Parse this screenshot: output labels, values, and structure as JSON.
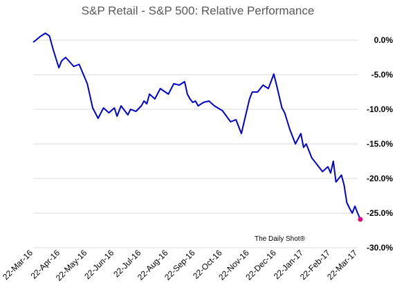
{
  "chart_data": {
    "type": "line",
    "title": "S&P Retail - S&P 500:   Relative Performance",
    "watermark": "The Daily Shot®",
    "y_ticks": [
      {
        "value": 0,
        "label": "0.0%"
      },
      {
        "value": -5,
        "label": "-5.0%"
      },
      {
        "value": -10,
        "label": "-10.0%"
      },
      {
        "value": -15,
        "label": "-15.0%"
      },
      {
        "value": -20,
        "label": "-20.0%"
      },
      {
        "value": -25,
        "label": "-25.0%"
      },
      {
        "value": -30,
        "label": "-30.0%"
      }
    ],
    "x_ticks": [
      "22-Mar-16",
      "22-Apr-16",
      "22-May-16",
      "22-Jun-16",
      "22-Jul-16",
      "22-Aug-16",
      "22-Sep-16",
      "22-Oct-16",
      "22-Nov-16",
      "22-Dec-16",
      "22-Jan-17",
      "22-Feb-17",
      "22-Mar-17"
    ],
    "ylim": [
      -30,
      0
    ],
    "grid": true,
    "series_color": "#0000cc",
    "marker_color": "#e0007f",
    "x": [
      0.0,
      0.1,
      0.25,
      0.45,
      0.6,
      0.75,
      0.95,
      1.05,
      1.2,
      1.5,
      1.7,
      2.0,
      2.2,
      2.4,
      2.6,
      2.8,
      3.0,
      3.1,
      3.25,
      3.5,
      3.6,
      3.8,
      4.0,
      4.1,
      4.2,
      4.3,
      4.5,
      4.7,
      5.0,
      5.2,
      5.4,
      5.6,
      5.7,
      5.8,
      5.9,
      6.0,
      6.1,
      6.3,
      6.5,
      6.7,
      7.0,
      7.3,
      7.5,
      7.7,
      8.0,
      8.1,
      8.3,
      8.5,
      8.7,
      8.9,
      9.0,
      9.2,
      9.3,
      9.5,
      9.7,
      9.9,
      10.0,
      10.1,
      10.3,
      10.5,
      10.7,
      10.9,
      11.0,
      11.1,
      11.2,
      11.4,
      11.5,
      11.6,
      11.7,
      11.8,
      11.9,
      12.0,
      12.1
    ],
    "values": [
      -0.3,
      0.0,
      0.5,
      1.0,
      0.6,
      -1.5,
      -4.0,
      -3.0,
      -2.5,
      -3.8,
      -3.5,
      -6.3,
      -9.8,
      -11.3,
      -9.8,
      -10.5,
      -9.8,
      -11.0,
      -9.5,
      -10.8,
      -10.0,
      -10.3,
      -9.5,
      -8.8,
      -9.2,
      -7.8,
      -8.5,
      -7.0,
      -7.8,
      -6.3,
      -6.5,
      -6.0,
      -7.8,
      -8.5,
      -9.0,
      -8.8,
      -9.5,
      -9.0,
      -8.8,
      -9.5,
      -10.2,
      -11.8,
      -11.5,
      -13.5,
      -8.5,
      -7.5,
      -7.5,
      -6.5,
      -7.0,
      -4.9,
      -6.5,
      -9.8,
      -10.5,
      -13.0,
      -15.0,
      -13.5,
      -15.5,
      -15.0,
      -17.0,
      -18.0,
      -19.0,
      -18.3,
      -19.2,
      -17.5,
      -20.5,
      -19.5,
      -21.0,
      -23.5,
      -24.3,
      -25.0,
      -24.0,
      -25.0,
      -25.9
    ],
    "last_point_marker": {
      "x": 12.1,
      "value": -25.9
    }
  }
}
